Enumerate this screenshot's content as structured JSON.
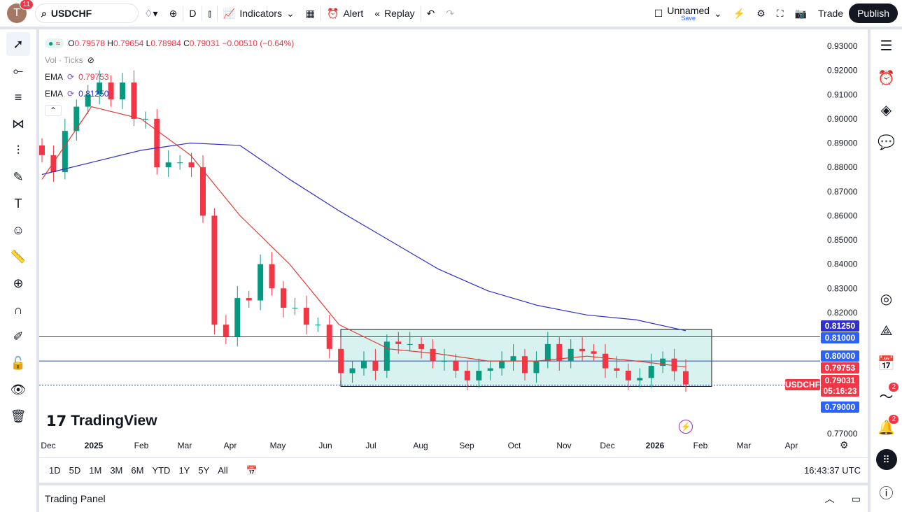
{
  "topbar": {
    "avatar_letter": "T",
    "notifications": "11",
    "symbol": "USDCHF",
    "interval": "D",
    "indicators": "Indicators",
    "alert": "Alert",
    "replay": "Replay",
    "layout_name": "Unnamed",
    "layout_save": "Save",
    "trade": "Trade",
    "publish": "Publish"
  },
  "legend": {
    "ohlc": {
      "o_label": "O",
      "o": "0.79578",
      "h_label": "H",
      "h": "0.79654",
      "l_label": "L",
      "l": "0.78984",
      "c_label": "C",
      "c": "0.79031",
      "change": "−0.00510 (−0.64%)"
    },
    "vol": "Vol · Ticks",
    "ema1_label": "EMA",
    "ema1_value": "0.79753",
    "ema2_label": "EMA",
    "ema2_value": "0.81250"
  },
  "colors": {
    "up": "#089981",
    "down": "#f23645",
    "ema_fast": "#e53935",
    "ema_slow": "#2f2fcf",
    "accent": "#2962ff",
    "box": "#c8ece8"
  },
  "price_axis": {
    "ticks": [
      "0.93000",
      "0.92000",
      "0.91000",
      "0.90000",
      "0.89000",
      "0.88000",
      "0.87000",
      "0.86000",
      "0.85000",
      "0.84000",
      "0.83000",
      "0.82000",
      "0.77000"
    ],
    "tags": [
      {
        "text": "0.81250",
        "color": "#2f2fcf"
      },
      {
        "text": "0.81000",
        "color": "#2962ff"
      },
      {
        "text": "0.80000",
        "color": "#2962ff"
      },
      {
        "text": "0.79753",
        "color": "#f23645"
      },
      {
        "text": "0.79031",
        "color": "#f23645"
      },
      {
        "text": "05:16:23",
        "color": "#f23645"
      },
      {
        "text": "0.79000",
        "color": "#2962ff"
      }
    ],
    "symbol_tag": "USDCHF"
  },
  "time_axis": [
    "Dec",
    "2025",
    "Feb",
    "Mar",
    "Apr",
    "May",
    "Jun",
    "Jul",
    "Aug",
    "Sep",
    "Oct",
    "Nov",
    "Dec",
    "2026",
    "Feb",
    "Mar",
    "Apr"
  ],
  "logo": "TradingView",
  "ranges": [
    "1D",
    "5D",
    "1M",
    "3M",
    "6M",
    "YTD",
    "1Y",
    "5Y",
    "All"
  ],
  "clock": "16:43:37 UTC",
  "panel": {
    "title": "Trading Panel"
  },
  "right_badges": {
    "ideas": "2",
    "alerts": "2"
  },
  "chart_data": {
    "type": "candlestick",
    "symbol": "USDCHF",
    "interval": "D (approximated weekly)",
    "ylim": [
      0.77,
      0.935
    ],
    "closes": [
      0.885,
      0.878,
      0.895,
      0.905,
      0.91,
      0.915,
      0.908,
      0.915,
      0.9,
      0.9,
      0.88,
      0.882,
      0.882,
      0.88,
      0.86,
      0.815,
      0.81,
      0.826,
      0.825,
      0.84,
      0.83,
      0.822,
      0.822,
      0.815,
      0.815,
      0.805,
      0.795,
      0.797,
      0.8,
      0.796,
      0.808,
      0.807,
      0.807,
      0.805,
      0.8,
      0.8,
      0.796,
      0.792,
      0.796,
      0.797,
      0.8,
      0.802,
      0.795,
      0.8,
      0.807,
      0.8,
      0.805,
      0.804,
      0.803,
      0.797,
      0.796,
      0.792,
      0.793,
      0.798,
      0.801,
      0.7958,
      0.79031
    ],
    "ema_fast": [
      0.875,
      0.905,
      0.9,
      0.885,
      0.86,
      0.84,
      0.815,
      0.805,
      0.803,
      0.8,
      0.8,
      0.802,
      0.8,
      0.79753
    ],
    "ema_slow": [
      0.877,
      0.882,
      0.887,
      0.89,
      0.889,
      0.875,
      0.862,
      0.85,
      0.838,
      0.829,
      0.823,
      0.819,
      0.817,
      0.8125
    ],
    "hlines": [
      0.81,
      0.8,
      0.79
    ],
    "rectangle": {
      "top": 0.813,
      "bottom": 0.7895
    }
  }
}
